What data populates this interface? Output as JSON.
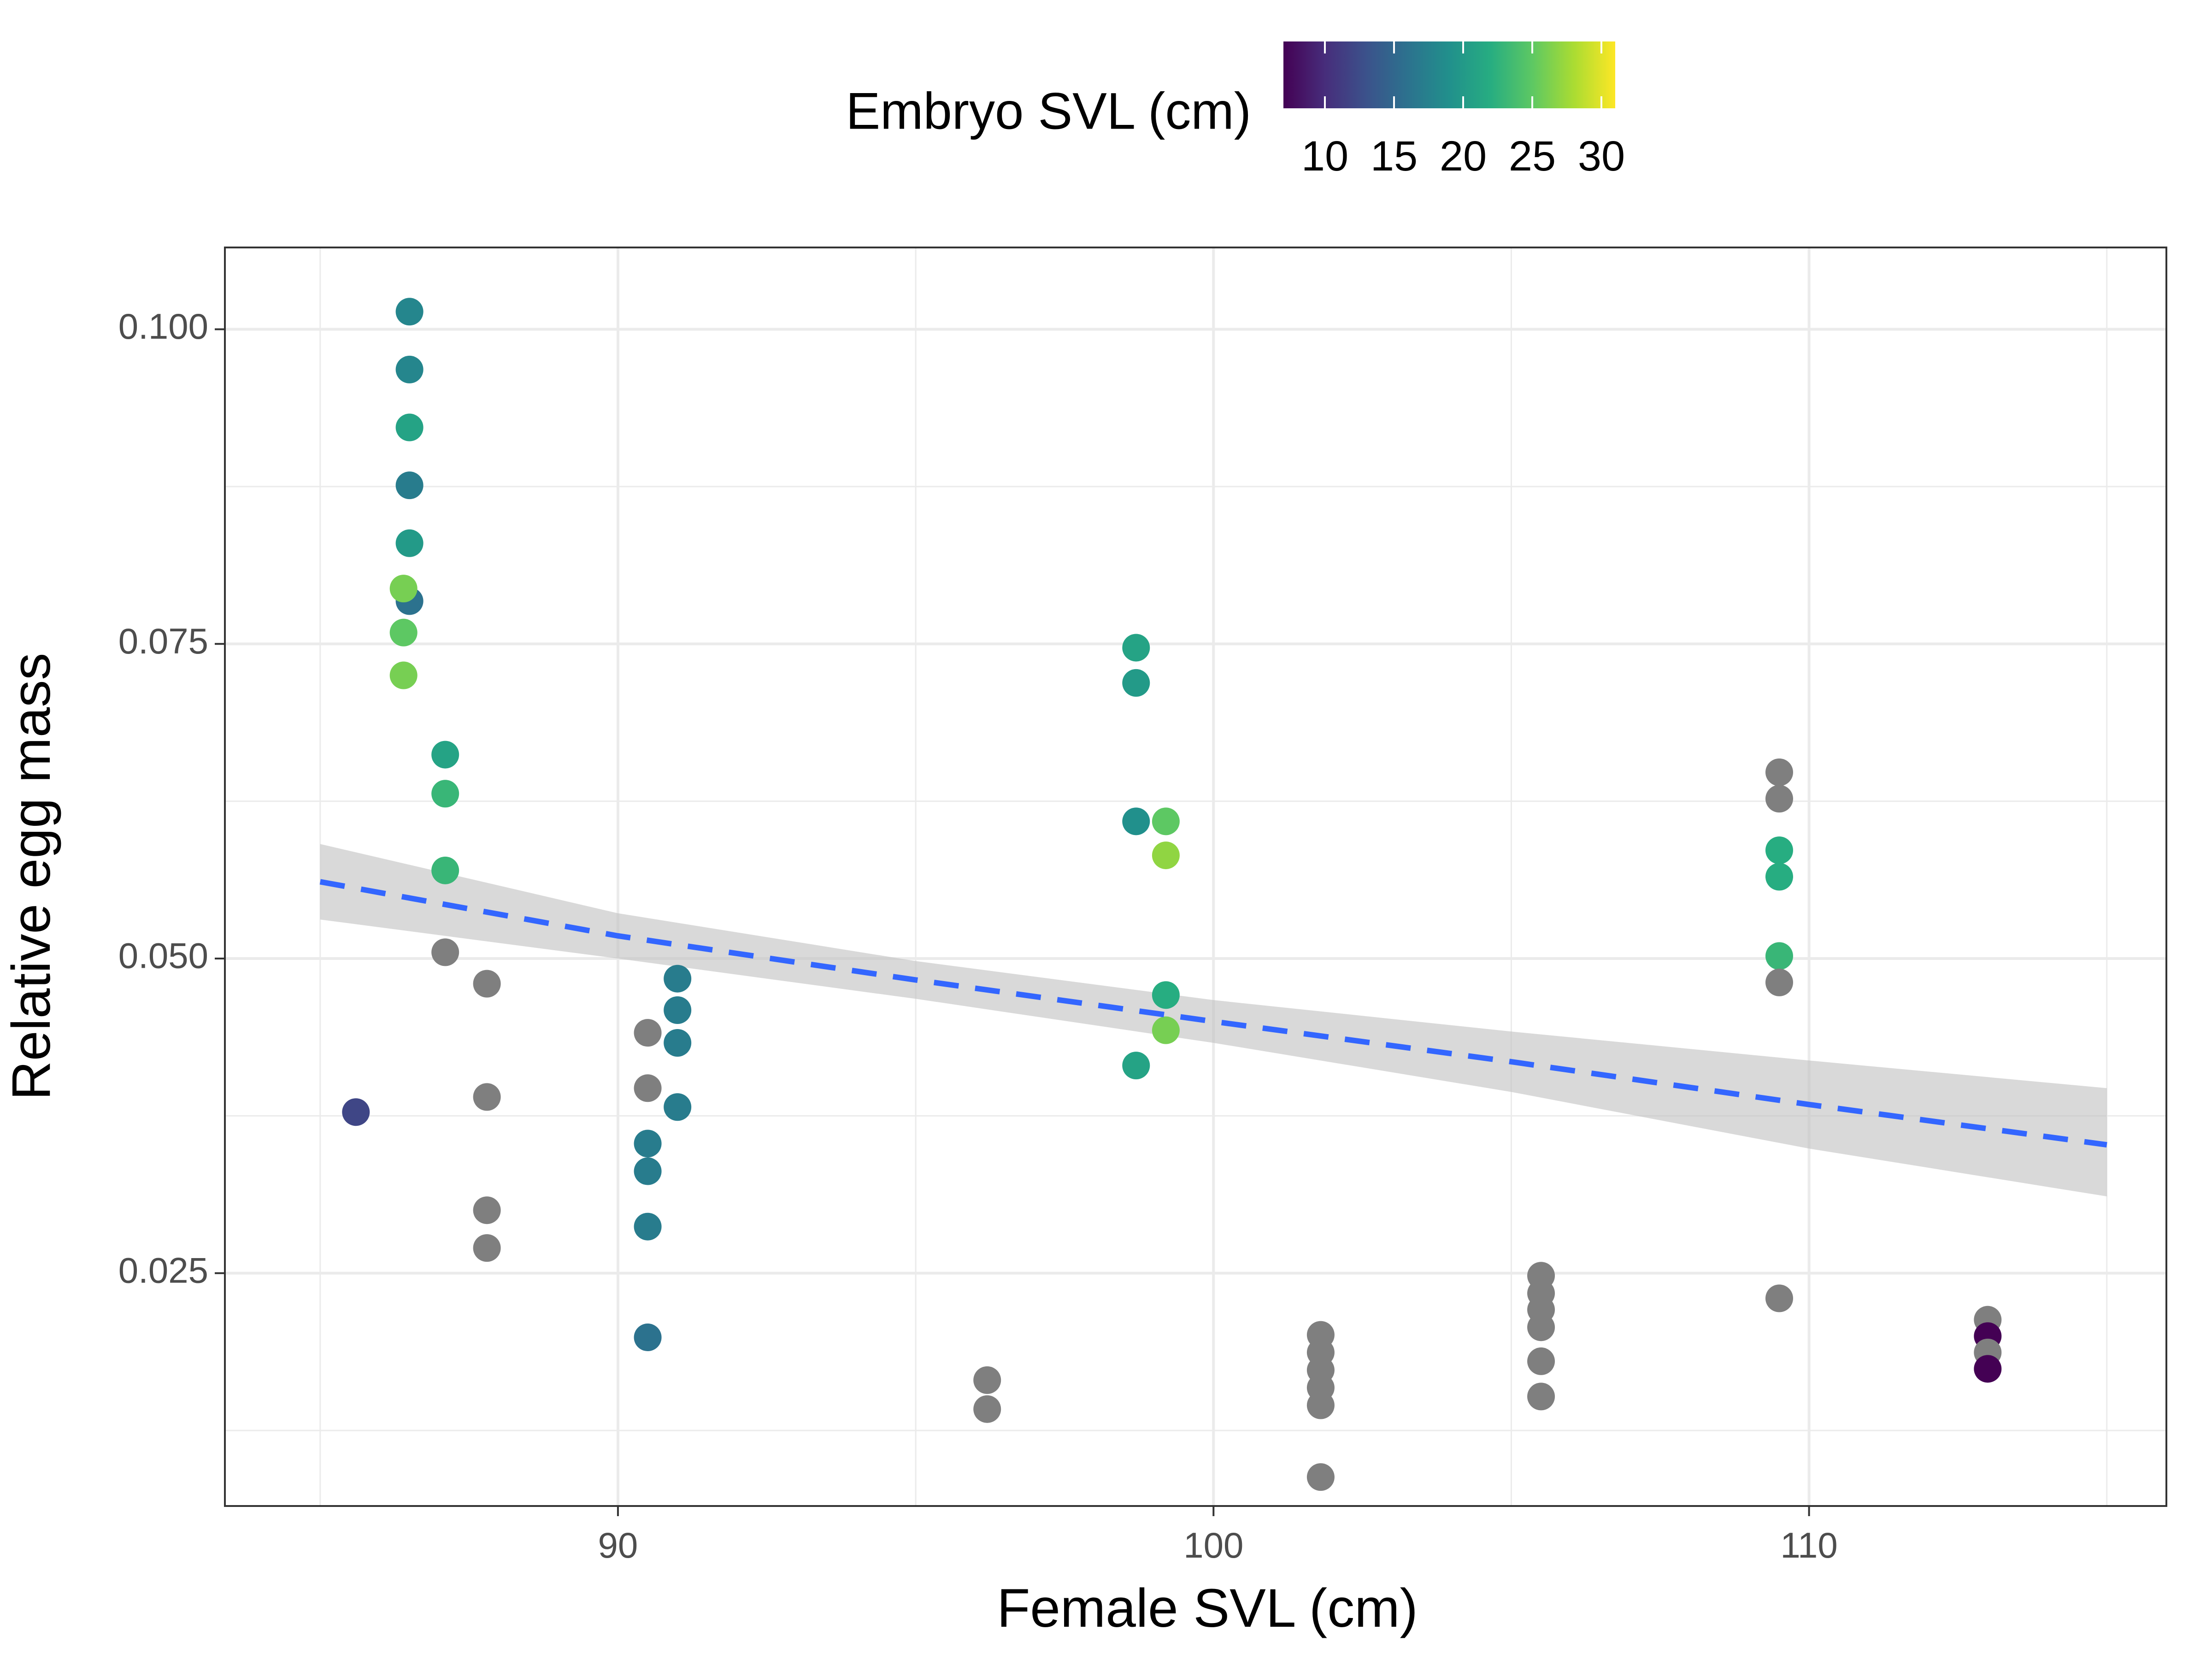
{
  "chart_data": {
    "type": "scatter",
    "title": "",
    "xlabel": "Female SVL (cm)",
    "ylabel": "Relative egg mass",
    "xlim": [
      83.4,
      116.0
    ],
    "ylim": [
      0.0065,
      0.1065
    ],
    "x_ticks": [
      90,
      100,
      110
    ],
    "x_tick_labels": [
      "90",
      "100",
      "110"
    ],
    "y_ticks": [
      0.025,
      0.05,
      0.075,
      0.1
    ],
    "y_tick_labels": [
      "0.025",
      "0.050",
      "0.075",
      "0.100"
    ],
    "grid": true,
    "legend": {
      "title": "Embryo SVL (cm)",
      "position": "top",
      "type": "colorbar",
      "colormap": "viridis",
      "range": [
        7,
        31
      ],
      "ticks": [
        10,
        15,
        20,
        25,
        30
      ],
      "tick_labels": [
        "10",
        "15",
        "20",
        "25",
        "30"
      ]
    },
    "na_color": "#7f7f7f",
    "point_color_note": "color = Embryo SVL; grey points have no embryo SVL value",
    "points": [
      {
        "x": 85.6,
        "y": 0.0378,
        "c": 12
      },
      {
        "x": 86.5,
        "y": 0.1014,
        "c": 18
      },
      {
        "x": 86.5,
        "y": 0.0968,
        "c": 18
      },
      {
        "x": 86.5,
        "y": 0.0922,
        "c": 21
      },
      {
        "x": 86.5,
        "y": 0.0876,
        "c": 17
      },
      {
        "x": 86.5,
        "y": 0.083,
        "c": 20
      },
      {
        "x": 86.5,
        "y": 0.0784,
        "c": 16
      },
      {
        "x": 86.4,
        "y": 0.0794,
        "c": 26
      },
      {
        "x": 86.4,
        "y": 0.0759,
        "c": 25
      },
      {
        "x": 86.4,
        "y": 0.0725,
        "c": 26
      },
      {
        "x": 87.1,
        "y": 0.0662,
        "c": 21
      },
      {
        "x": 87.1,
        "y": 0.0631,
        "c": 23
      },
      {
        "x": 87.1,
        "y": 0.057,
        "c": 23
      },
      {
        "x": 87.1,
        "y": 0.0505,
        "c": null
      },
      {
        "x": 87.8,
        "y": 0.048,
        "c": null
      },
      {
        "x": 87.8,
        "y": 0.039,
        "c": null
      },
      {
        "x": 87.8,
        "y": 0.03,
        "c": null
      },
      {
        "x": 87.8,
        "y": 0.027,
        "c": null
      },
      {
        "x": 90.5,
        "y": 0.0441,
        "c": null
      },
      {
        "x": 90.5,
        "y": 0.0397,
        "c": null
      },
      {
        "x": 90.5,
        "y": 0.0353,
        "c": 17
      },
      {
        "x": 90.5,
        "y": 0.0331,
        "c": 17
      },
      {
        "x": 90.5,
        "y": 0.0287,
        "c": 17
      },
      {
        "x": 90.5,
        "y": 0.0199,
        "c": 16
      },
      {
        "x": 91.0,
        "y": 0.0484,
        "c": 17
      },
      {
        "x": 91.0,
        "y": 0.0459,
        "c": 17
      },
      {
        "x": 91.0,
        "y": 0.0433,
        "c": 17
      },
      {
        "x": 91.0,
        "y": 0.0382,
        "c": 17
      },
      {
        "x": 96.2,
        "y": 0.0165,
        "c": null
      },
      {
        "x": 96.2,
        "y": 0.0142,
        "c": null
      },
      {
        "x": 98.7,
        "y": 0.0747,
        "c": 21
      },
      {
        "x": 98.7,
        "y": 0.0719,
        "c": 20
      },
      {
        "x": 98.7,
        "y": 0.0609,
        "c": 19
      },
      {
        "x": 98.7,
        "y": 0.0415,
        "c": 21
      },
      {
        "x": 99.2,
        "y": 0.0609,
        "c": 25
      },
      {
        "x": 99.2,
        "y": 0.0582,
        "c": 27
      },
      {
        "x": 99.2,
        "y": 0.0471,
        "c": 22
      },
      {
        "x": 99.2,
        "y": 0.0443,
        "c": 26
      },
      {
        "x": 101.8,
        "y": 0.0201,
        "c": null
      },
      {
        "x": 101.8,
        "y": 0.0187,
        "c": null
      },
      {
        "x": 101.8,
        "y": 0.0173,
        "c": null
      },
      {
        "x": 101.8,
        "y": 0.0159,
        "c": null
      },
      {
        "x": 101.8,
        "y": 0.0145,
        "c": null
      },
      {
        "x": 101.8,
        "y": 0.0088,
        "c": null
      },
      {
        "x": 105.5,
        "y": 0.0248,
        "c": null
      },
      {
        "x": 105.5,
        "y": 0.0234,
        "c": null
      },
      {
        "x": 105.5,
        "y": 0.0221,
        "c": null
      },
      {
        "x": 105.5,
        "y": 0.0207,
        "c": null
      },
      {
        "x": 105.5,
        "y": 0.018,
        "c": null
      },
      {
        "x": 105.5,
        "y": 0.0152,
        "c": null
      },
      {
        "x": 109.5,
        "y": 0.0648,
        "c": null
      },
      {
        "x": 109.5,
        "y": 0.0627,
        "c": null
      },
      {
        "x": 109.5,
        "y": 0.0586,
        "c": 22
      },
      {
        "x": 109.5,
        "y": 0.0565,
        "c": 22
      },
      {
        "x": 109.5,
        "y": 0.0502,
        "c": 23
      },
      {
        "x": 109.5,
        "y": 0.0481,
        "c": null
      },
      {
        "x": 109.5,
        "y": 0.023,
        "c": null
      },
      {
        "x": 113.0,
        "y": 0.0213,
        "c": null
      },
      {
        "x": 113.0,
        "y": 0.02,
        "c": 7
      },
      {
        "x": 113.0,
        "y": 0.0187,
        "c": null
      },
      {
        "x": 113.0,
        "y": 0.0174,
        "c": 7
      }
    ],
    "fit": {
      "style": "dashed",
      "color": "#3366FF",
      "x": [
        85,
        90,
        95,
        100,
        105,
        110,
        115
      ],
      "y": [
        0.0561,
        0.0518,
        0.0483,
        0.045,
        0.0418,
        0.0384,
        0.0352
      ],
      "ci_lower": [
        0.0531,
        0.05,
        0.0468,
        0.0433,
        0.0394,
        0.0349,
        0.0311
      ],
      "ci_upper": [
        0.0591,
        0.0536,
        0.0498,
        0.0467,
        0.0442,
        0.0419,
        0.0397
      ]
    }
  }
}
